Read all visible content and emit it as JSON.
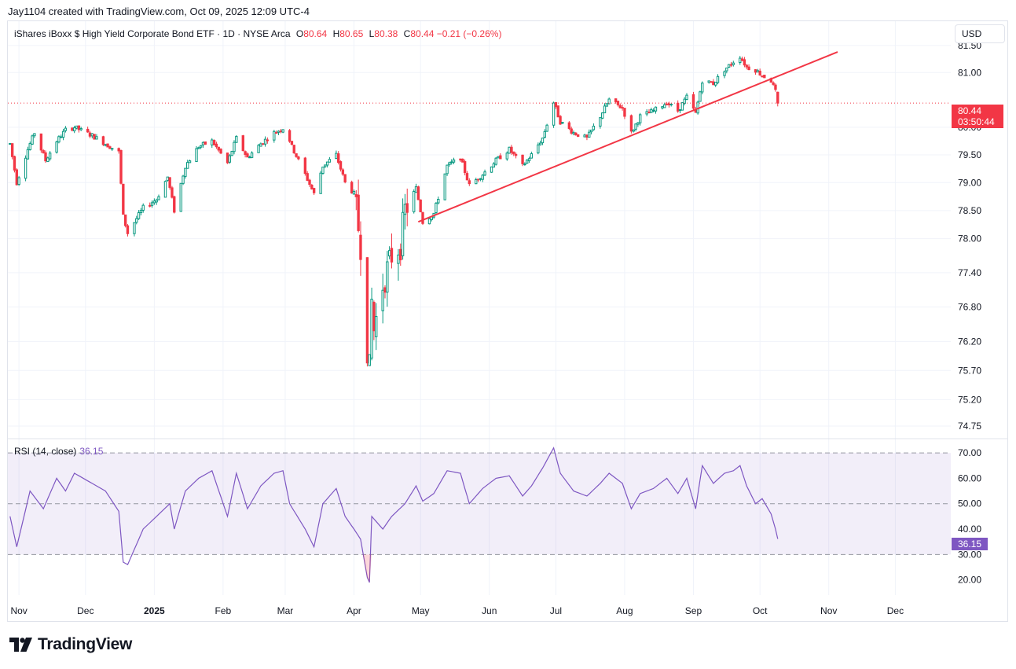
{
  "header": {
    "credit": "Jay1104 created with TradingView.com, Oct 09, 2025 12:09 UTC-4",
    "currency": "USD"
  },
  "legend": {
    "symbol": "iShares iBoxx $ High Yield Corporate Bond ETF · 1D · NYSE Arca",
    "o_label": "O",
    "o_value": "80.64",
    "h_label": "H",
    "h_value": "80.65",
    "l_label": "L",
    "l_value": "80.38",
    "c_label": "C",
    "c_value": "80.44",
    "change": "−0.21 (−0.26%)"
  },
  "price_tag": {
    "price": "80.44",
    "countdown": "03:50:44"
  },
  "rsi": {
    "label": "RSI (14, close)",
    "value": "36.15"
  },
  "brand": {
    "name": "TradingView"
  },
  "colors": {
    "up": "#089981",
    "down": "#f23645",
    "rsi": "#7e57c2",
    "trendline": "#f23645"
  },
  "chart_data": {
    "type": "candlestick",
    "title": "iShares iBoxx $ High Yield Corporate Bond ETF · 1D · NYSE Arca",
    "x_labels": [
      {
        "label": "Nov",
        "date": "2024-11-01",
        "bold": false
      },
      {
        "label": "Dec",
        "date": "2024-12-01",
        "bold": false
      },
      {
        "label": "2025",
        "date": "2025-01-01",
        "bold": true
      },
      {
        "label": "Feb",
        "date": "2025-02-01",
        "bold": false
      },
      {
        "label": "Mar",
        "date": "2025-03-01",
        "bold": false
      },
      {
        "label": "Apr",
        "date": "2025-04-01",
        "bold": false
      },
      {
        "label": "May",
        "date": "2025-05-01",
        "bold": false
      },
      {
        "label": "Jun",
        "date": "2025-06-01",
        "bold": false
      },
      {
        "label": "Jul",
        "date": "2025-07-01",
        "bold": false
      },
      {
        "label": "Aug",
        "date": "2025-08-01",
        "bold": false
      },
      {
        "label": "Sep",
        "date": "2025-09-01",
        "bold": false
      },
      {
        "label": "Oct",
        "date": "2025-10-01",
        "bold": false
      },
      {
        "label": "Nov",
        "date": "2025-11-01",
        "bold": false
      },
      {
        "label": "Dec",
        "date": "2025-12-01",
        "bold": false
      }
    ],
    "y_ticks": [
      "81.50",
      "81.00",
      "80.00",
      "79.50",
      "79.00",
      "78.50",
      "78.00",
      "77.40",
      "76.80",
      "76.20",
      "75.70",
      "75.20",
      "74.75"
    ],
    "y_scale": "log",
    "ylim": [
      74.55,
      81.95
    ],
    "rsi_ticks": [
      "70.00",
      "60.00",
      "50.00",
      "40.00",
      "30.00",
      "20.00"
    ],
    "rsi_ylim": [
      14,
      75
    ],
    "rsi_band": [
      30,
      70
    ],
    "rsi_mid": 50,
    "last_price": 80.44,
    "trendline": {
      "start": {
        "date": "2025-04-30",
        "price": 78.3
      },
      "end": {
        "date": "2025-11-05",
        "price": 81.38
      }
    },
    "price_path": [
      [
        "2024-10-28",
        79.7
      ],
      [
        "2024-10-31",
        79.0
      ],
      [
        "2024-11-05",
        79.6
      ],
      [
        "2024-11-08",
        79.9
      ],
      [
        "2024-11-13",
        79.4
      ],
      [
        "2024-11-18",
        79.75
      ],
      [
        "2024-11-22",
        79.95
      ],
      [
        "2024-11-26",
        80.0
      ],
      [
        "2024-12-04",
        79.85
      ],
      [
        "2024-12-10",
        79.7
      ],
      [
        "2024-12-16",
        79.55
      ],
      [
        "2024-12-18",
        78.4
      ],
      [
        "2024-12-20",
        78.1
      ],
      [
        "2024-12-27",
        78.55
      ],
      [
        "2025-01-02",
        78.7
      ],
      [
        "2025-01-07",
        79.1
      ],
      [
        "2025-01-10",
        78.5
      ],
      [
        "2025-01-15",
        79.3
      ],
      [
        "2025-01-21",
        79.65
      ],
      [
        "2025-01-27",
        79.75
      ],
      [
        "2025-02-03",
        79.35
      ],
      [
        "2025-02-07",
        79.8
      ],
      [
        "2025-02-12",
        79.45
      ],
      [
        "2025-02-18",
        79.7
      ],
      [
        "2025-02-24",
        79.9
      ],
      [
        "2025-03-01",
        80.0
      ],
      [
        "2025-03-04",
        79.65
      ],
      [
        "2025-03-10",
        79.15
      ],
      [
        "2025-03-14",
        78.8
      ],
      [
        "2025-03-18",
        79.3
      ],
      [
        "2025-03-24",
        79.5
      ],
      [
        "2025-03-28",
        79.0
      ],
      [
        "2025-04-01",
        78.8
      ],
      [
        "2025-04-04",
        77.9
      ],
      [
        "2025-04-07",
        76.1
      ],
      [
        "2025-04-08",
        75.7
      ],
      [
        "2025-04-09",
        76.9
      ],
      [
        "2025-04-10",
        76.4
      ],
      [
        "2025-04-14",
        77.2
      ],
      [
        "2025-04-18",
        77.7
      ],
      [
        "2025-04-22",
        77.9
      ],
      [
        "2025-04-24",
        78.5
      ],
      [
        "2025-04-29",
        78.9
      ],
      [
        "2025-05-02",
        78.3
      ],
      [
        "2025-05-07",
        78.45
      ],
      [
        "2025-05-13",
        79.3
      ],
      [
        "2025-05-19",
        79.45
      ],
      [
        "2025-05-23",
        78.95
      ],
      [
        "2025-05-29",
        79.15
      ],
      [
        "2025-06-04",
        79.4
      ],
      [
        "2025-06-10",
        79.6
      ],
      [
        "2025-06-16",
        79.3
      ],
      [
        "2025-06-20",
        79.5
      ],
      [
        "2025-06-25",
        79.8
      ],
      [
        "2025-06-30",
        80.45
      ],
      [
        "2025-07-03",
        80.1
      ],
      [
        "2025-07-09",
        79.9
      ],
      [
        "2025-07-15",
        79.8
      ],
      [
        "2025-07-21",
        80.2
      ],
      [
        "2025-07-25",
        80.5
      ],
      [
        "2025-07-31",
        80.35
      ],
      [
        "2025-08-04",
        79.9
      ],
      [
        "2025-08-08",
        80.2
      ],
      [
        "2025-08-14",
        80.3
      ],
      [
        "2025-08-20",
        80.45
      ],
      [
        "2025-08-25",
        80.3
      ],
      [
        "2025-08-29",
        80.55
      ],
      [
        "2025-09-02",
        80.25
      ],
      [
        "2025-09-05",
        80.85
      ],
      [
        "2025-09-10",
        80.8
      ],
      [
        "2025-09-15",
        81.05
      ],
      [
        "2025-09-19",
        81.2
      ],
      [
        "2025-09-22",
        81.3
      ],
      [
        "2025-09-25",
        81.1
      ],
      [
        "2025-09-29",
        81.05
      ],
      [
        "2025-10-02",
        80.95
      ],
      [
        "2025-10-06",
        80.85
      ],
      [
        "2025-10-08",
        80.65
      ],
      [
        "2025-10-09",
        80.44
      ]
    ],
    "rsi_path": [
      [
        "2024-10-28",
        45
      ],
      [
        "2024-10-31",
        33
      ],
      [
        "2024-11-06",
        55
      ],
      [
        "2024-11-12",
        48
      ],
      [
        "2024-11-18",
        60
      ],
      [
        "2024-11-22",
        55
      ],
      [
        "2024-11-26",
        62
      ],
      [
        "2024-12-04",
        58
      ],
      [
        "2024-12-10",
        55
      ],
      [
        "2024-12-16",
        47
      ],
      [
        "2024-12-18",
        27
      ],
      [
        "2024-12-20",
        26
      ],
      [
        "2024-12-27",
        40
      ],
      [
        "2025-01-02",
        45
      ],
      [
        "2025-01-08",
        50
      ],
      [
        "2025-01-10",
        40
      ],
      [
        "2025-01-15",
        55
      ],
      [
        "2025-01-21",
        60
      ],
      [
        "2025-01-27",
        63
      ],
      [
        "2025-02-03",
        45
      ],
      [
        "2025-02-07",
        62
      ],
      [
        "2025-02-12",
        48
      ],
      [
        "2025-02-18",
        57
      ],
      [
        "2025-02-24",
        62
      ],
      [
        "2025-02-28",
        63
      ],
      [
        "2025-03-03",
        50
      ],
      [
        "2025-03-10",
        40
      ],
      [
        "2025-03-14",
        33
      ],
      [
        "2025-03-18",
        50
      ],
      [
        "2025-03-24",
        56
      ],
      [
        "2025-03-28",
        45
      ],
      [
        "2025-04-01",
        40
      ],
      [
        "2025-04-04",
        36
      ],
      [
        "2025-04-07",
        21
      ],
      [
        "2025-04-08",
        19
      ],
      [
        "2025-04-09",
        45
      ],
      [
        "2025-04-14",
        40
      ],
      [
        "2025-04-18",
        45
      ],
      [
        "2025-04-24",
        50
      ],
      [
        "2025-04-29",
        57
      ],
      [
        "2025-05-02",
        51
      ],
      [
        "2025-05-07",
        54
      ],
      [
        "2025-05-13",
        63
      ],
      [
        "2025-05-19",
        62
      ],
      [
        "2025-05-23",
        50
      ],
      [
        "2025-05-29",
        56
      ],
      [
        "2025-06-04",
        60
      ],
      [
        "2025-06-10",
        61
      ],
      [
        "2025-06-16",
        53
      ],
      [
        "2025-06-20",
        57
      ],
      [
        "2025-06-25",
        64
      ],
      [
        "2025-06-30",
        72
      ],
      [
        "2025-07-03",
        62
      ],
      [
        "2025-07-09",
        55
      ],
      [
        "2025-07-15",
        53
      ],
      [
        "2025-07-21",
        58
      ],
      [
        "2025-07-25",
        62
      ],
      [
        "2025-07-31",
        58
      ],
      [
        "2025-08-04",
        48
      ],
      [
        "2025-08-08",
        54
      ],
      [
        "2025-08-14",
        56
      ],
      [
        "2025-08-20",
        60
      ],
      [
        "2025-08-25",
        54
      ],
      [
        "2025-08-29",
        60
      ],
      [
        "2025-09-02",
        48
      ],
      [
        "2025-09-05",
        65
      ],
      [
        "2025-09-10",
        58
      ],
      [
        "2025-09-15",
        62
      ],
      [
        "2025-09-19",
        63
      ],
      [
        "2025-09-22",
        65
      ],
      [
        "2025-09-25",
        57
      ],
      [
        "2025-09-29",
        50
      ],
      [
        "2025-10-02",
        52
      ],
      [
        "2025-10-06",
        46
      ],
      [
        "2025-10-08",
        40
      ],
      [
        "2025-10-09",
        36.15
      ]
    ]
  }
}
